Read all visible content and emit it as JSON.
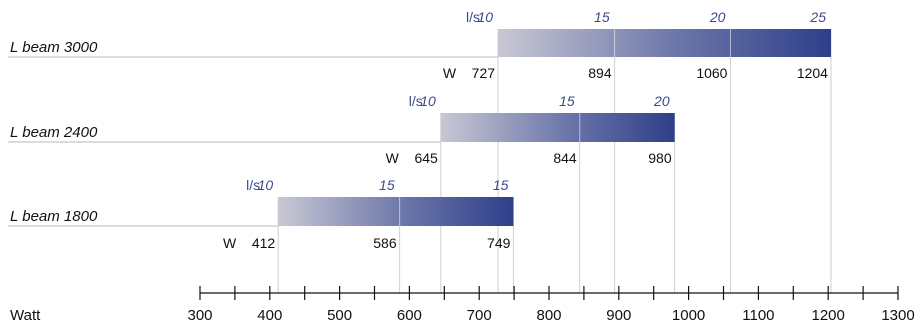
{
  "chart_data": {
    "type": "bar",
    "orientation": "horizontal",
    "xlabel": "Watt",
    "xlim": [
      300,
      1300
    ],
    "x_ticks": [
      300,
      400,
      500,
      600,
      700,
      800,
      900,
      1000,
      1100,
      1200,
      1300
    ],
    "x_tick_labels": [
      "300",
      "400",
      "500",
      "600",
      "700",
      "800",
      "900",
      "1000",
      "1100",
      "1200",
      "1300"
    ],
    "grid": "vertical lines at marker positions",
    "colors": {
      "gradient_start": "#c8c8d4",
      "gradient_end": "#2e3f8a",
      "flow_text": "#3b4a8a",
      "gridline": "#c8c8c8"
    },
    "series": [
      {
        "name": "L beam 3000",
        "flow_unit": "l/s",
        "watt_unit": "W",
        "markers": [
          {
            "watt": 727,
            "flow": "10"
          },
          {
            "watt": 894,
            "flow": "15"
          },
          {
            "watt": 1060,
            "flow": "20"
          },
          {
            "watt": 1204,
            "flow": "25"
          }
        ]
      },
      {
        "name": "L beam 2400",
        "flow_unit": "l/s",
        "watt_unit": "W",
        "markers": [
          {
            "watt": 645,
            "flow": "10"
          },
          {
            "watt": 844,
            "flow": "15"
          },
          {
            "watt": 980,
            "flow": "20"
          }
        ]
      },
      {
        "name": "L beam 1800",
        "flow_unit": "l/s",
        "watt_unit": "W",
        "markers": [
          {
            "watt": 412,
            "flow": "10"
          },
          {
            "watt": 586,
            "flow": "15"
          },
          {
            "watt": 749,
            "flow": "15"
          }
        ]
      }
    ]
  }
}
